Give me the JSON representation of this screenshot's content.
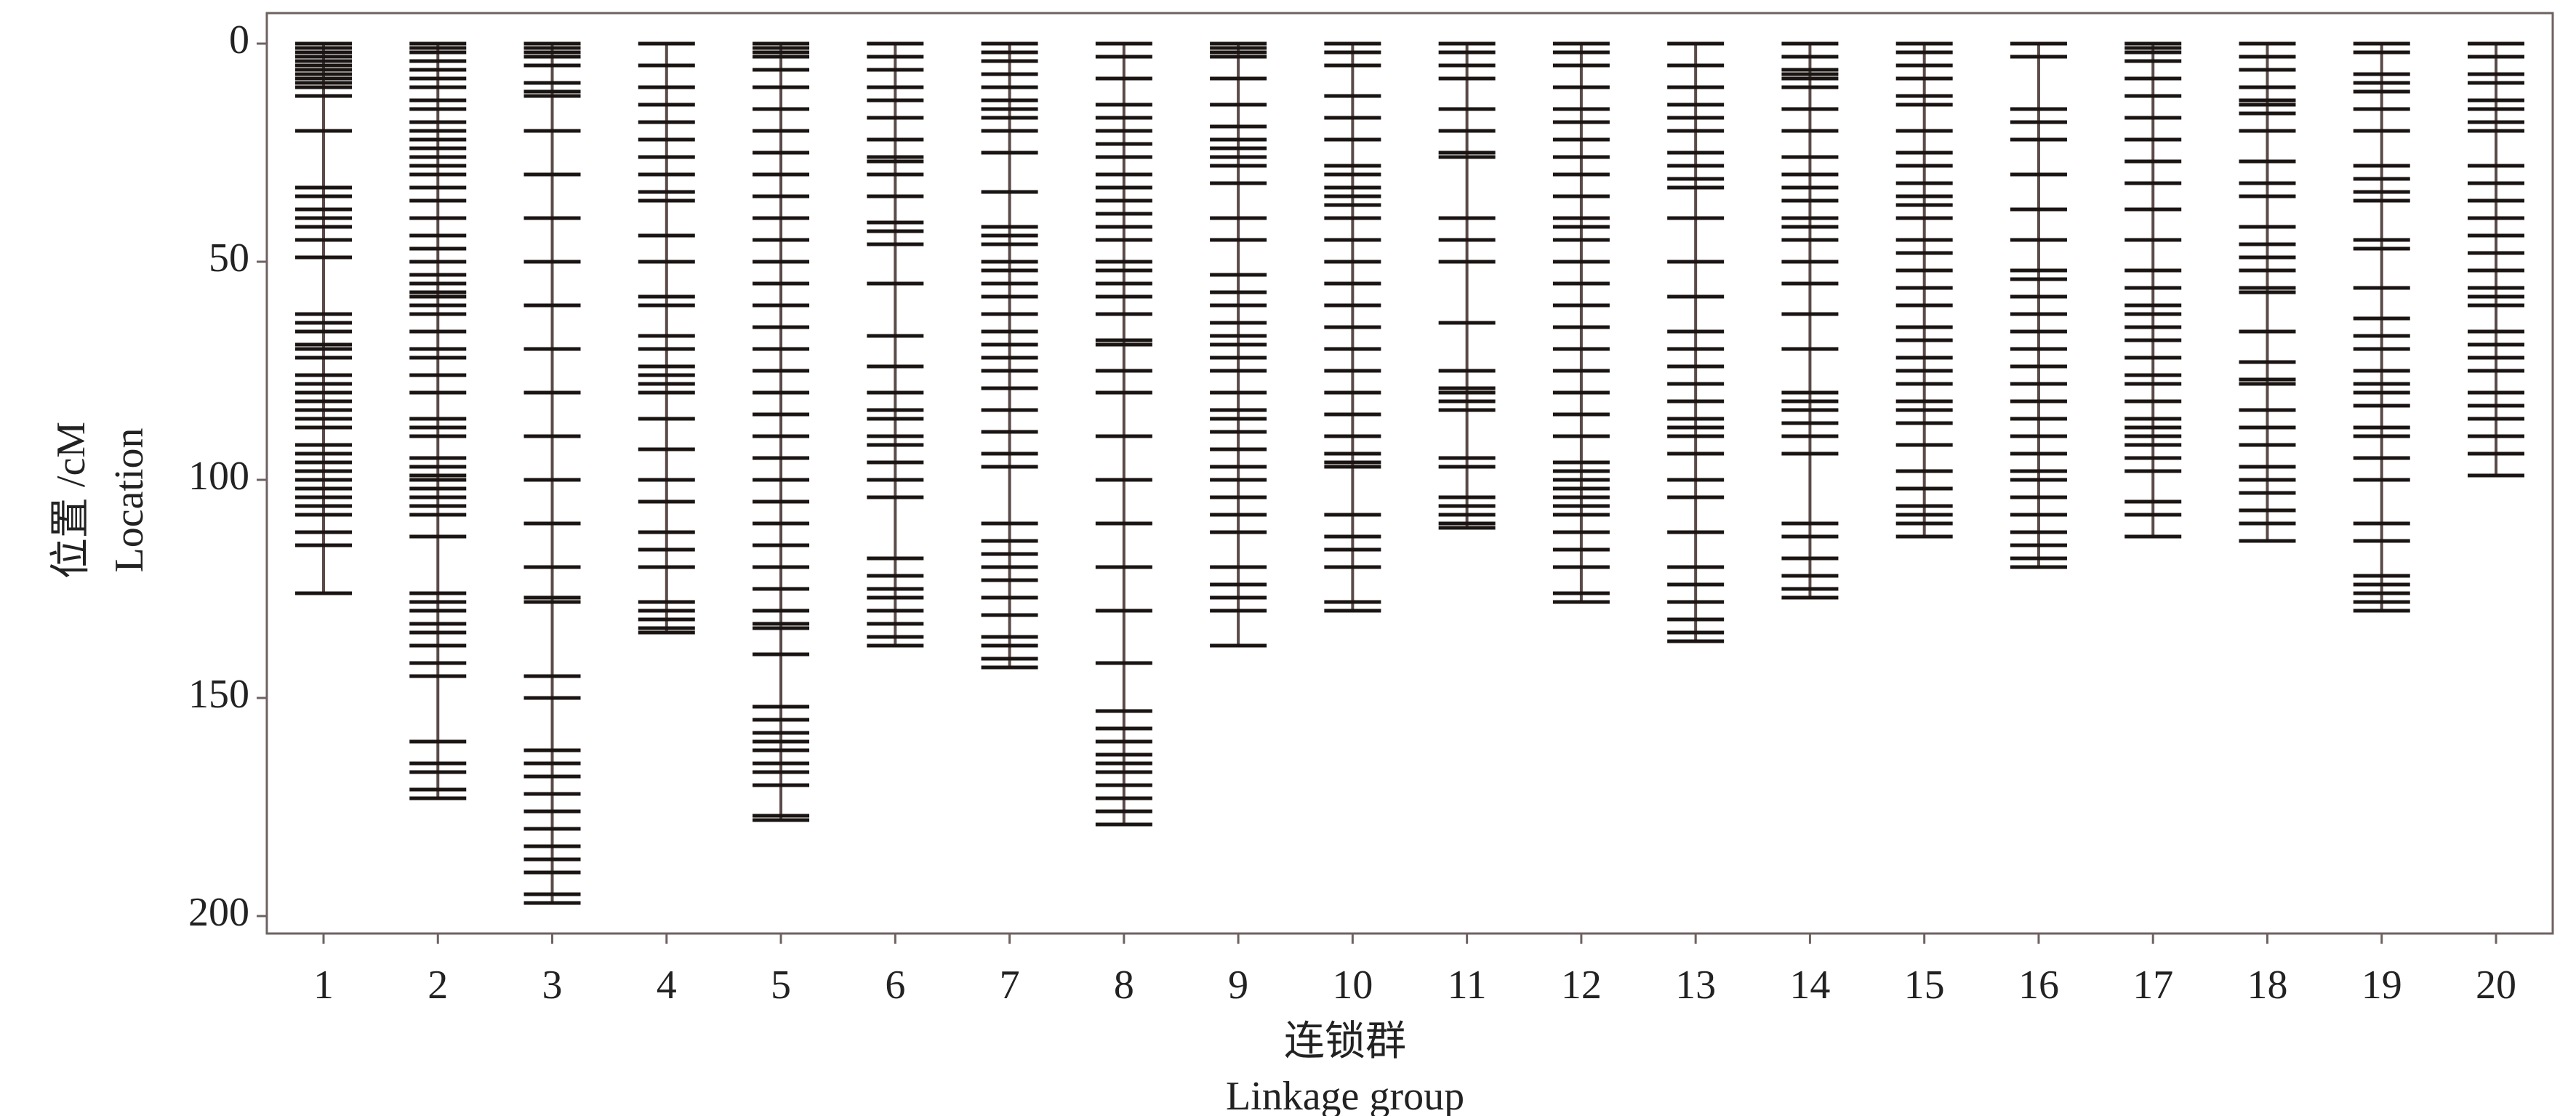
{
  "chart_data": {
    "type": "linkage-map",
    "x_label": "连锁群",
    "x_label_en": "Linkage group",
    "y_label": "位置 /cM",
    "y_label_en": "Location",
    "categories": [
      "1",
      "2",
      "3",
      "4",
      "5",
      "6",
      "7",
      "8",
      "9",
      "10",
      "11",
      "12",
      "13",
      "14",
      "15",
      "16",
      "17",
      "18",
      "19",
      "20"
    ],
    "lengths": [
      126,
      173,
      197,
      135,
      178,
      138,
      143,
      179,
      138,
      130,
      111,
      128,
      137,
      127,
      113,
      120,
      113,
      114,
      130,
      99
    ],
    "markers": [
      [
        0,
        1,
        2,
        3,
        4,
        5,
        6,
        7,
        8,
        9,
        10,
        12,
        20,
        33,
        35,
        38,
        40,
        42,
        45,
        49,
        62,
        64,
        66,
        69,
        70,
        72,
        76,
        78,
        80,
        82,
        84,
        86,
        88,
        92,
        94,
        96,
        98,
        100,
        102,
        104,
        106,
        108,
        112,
        115,
        126
      ],
      [
        0,
        1,
        2,
        4,
        6,
        8,
        10,
        13,
        15,
        18,
        20,
        22,
        24,
        26,
        28,
        30,
        33,
        36,
        40,
        44,
        47,
        50,
        53,
        55,
        57,
        58,
        60,
        62,
        66,
        70,
        72,
        76,
        80,
        86,
        88,
        90,
        95,
        97,
        99,
        100,
        102,
        104,
        106,
        108,
        113,
        126,
        128,
        130,
        133,
        135,
        138,
        142,
        145,
        160,
        165,
        167,
        171,
        173
      ],
      [
        0,
        1,
        2,
        3,
        5,
        9,
        11,
        12,
        20,
        30,
        40,
        50,
        60,
        70,
        80,
        90,
        100,
        110,
        120,
        127,
        128,
        145,
        150,
        162,
        165,
        168,
        172,
        176,
        180,
        184,
        187,
        190,
        195,
        197
      ],
      [
        0,
        5,
        10,
        14,
        18,
        22,
        26,
        30,
        34,
        36,
        44,
        50,
        58,
        60,
        67,
        70,
        74,
        76,
        78,
        80,
        86,
        93,
        100,
        105,
        112,
        116,
        120,
        128,
        130,
        132,
        134,
        135
      ],
      [
        0,
        1,
        2,
        3,
        6,
        10,
        15,
        20,
        25,
        30,
        35,
        40,
        45,
        50,
        55,
        60,
        65,
        70,
        75,
        80,
        85,
        90,
        95,
        100,
        105,
        110,
        115,
        120,
        125,
        130,
        133,
        134,
        140,
        152,
        155,
        158,
        160,
        162,
        165,
        167,
        170,
        177,
        178
      ],
      [
        0,
        3,
        6,
        10,
        13,
        17,
        22,
        26,
        27,
        30,
        35,
        41,
        43,
        46,
        55,
        67,
        74,
        80,
        84,
        86,
        90,
        92,
        96,
        100,
        104,
        118,
        122,
        125,
        127,
        130,
        133,
        136,
        138
      ],
      [
        0,
        2,
        4,
        7,
        10,
        13,
        15,
        17,
        20,
        25,
        34,
        42,
        44,
        46,
        50,
        52,
        55,
        58,
        62,
        66,
        69,
        72,
        75,
        79,
        84,
        89,
        94,
        97,
        110,
        114,
        117,
        120,
        123,
        127,
        131,
        136,
        138,
        141,
        143
      ],
      [
        0,
        3,
        8,
        14,
        17,
        20,
        23,
        26,
        30,
        33,
        36,
        39,
        42,
        45,
        50,
        52,
        55,
        58,
        62,
        68,
        69,
        75,
        80,
        90,
        100,
        110,
        120,
        130,
        142,
        153,
        157,
        160,
        163,
        165,
        167,
        170,
        173,
        176,
        179
      ],
      [
        0,
        1,
        2,
        3,
        8,
        14,
        19,
        22,
        24,
        26,
        28,
        32,
        40,
        45,
        53,
        57,
        60,
        64,
        67,
        69,
        72,
        75,
        80,
        84,
        86,
        89,
        93,
        97,
        100,
        104,
        108,
        112,
        120,
        124,
        127,
        130,
        138
      ],
      [
        0,
        2,
        5,
        12,
        17,
        22,
        28,
        30,
        33,
        35,
        37,
        40,
        45,
        50,
        55,
        60,
        65,
        70,
        75,
        80,
        85,
        90,
        94,
        96,
        97,
        108,
        113,
        116,
        120,
        128,
        130
      ],
      [
        0,
        2,
        5,
        8,
        15,
        20,
        25,
        26,
        40,
        45,
        50,
        64,
        75,
        79,
        80,
        82,
        84,
        95,
        97,
        104,
        106,
        108,
        110,
        111
      ],
      [
        0,
        2,
        5,
        10,
        15,
        18,
        22,
        26,
        30,
        35,
        40,
        42,
        45,
        50,
        55,
        60,
        65,
        70,
        75,
        80,
        85,
        90,
        96,
        98,
        100,
        102,
        104,
        106,
        108,
        112,
        116,
        120,
        126,
        128
      ],
      [
        0,
        5,
        10,
        14,
        17,
        20,
        25,
        28,
        31,
        33,
        40,
        50,
        58,
        66,
        70,
        74,
        78,
        82,
        86,
        88,
        90,
        94,
        100,
        104,
        112,
        120,
        124,
        128,
        132,
        135,
        137
      ],
      [
        0,
        3,
        6,
        7,
        8,
        10,
        15,
        20,
        26,
        30,
        33,
        36,
        40,
        42,
        45,
        50,
        55,
        62,
        70,
        80,
        82,
        84,
        87,
        90,
        94,
        110,
        113,
        118,
        122,
        125,
        127
      ],
      [
        0,
        2,
        5,
        8,
        12,
        14,
        20,
        25,
        28,
        32,
        35,
        37,
        40,
        45,
        48,
        52,
        56,
        60,
        65,
        68,
        72,
        75,
        78,
        82,
        84,
        87,
        92,
        98,
        102,
        106,
        108,
        110,
        113
      ],
      [
        0,
        3,
        15,
        18,
        22,
        30,
        38,
        45,
        52,
        54,
        58,
        62,
        66,
        70,
        74,
        78,
        82,
        86,
        90,
        94,
        98,
        100,
        104,
        108,
        112,
        115,
        118,
        120
      ],
      [
        0,
        1,
        2,
        4,
        8,
        12,
        17,
        22,
        27,
        32,
        38,
        45,
        52,
        56,
        60,
        62,
        65,
        68,
        72,
        76,
        78,
        82,
        86,
        88,
        90,
        92,
        95,
        98,
        105,
        108,
        113
      ],
      [
        0,
        3,
        6,
        10,
        13,
        14,
        16,
        20,
        27,
        32,
        35,
        42,
        46,
        49,
        52,
        56,
        57,
        66,
        73,
        77,
        78,
        84,
        88,
        92,
        97,
        100,
        103,
        107,
        110,
        114
      ],
      [
        0,
        2,
        7,
        9,
        11,
        15,
        20,
        28,
        31,
        34,
        36,
        45,
        47,
        56,
        63,
        67,
        70,
        75,
        78,
        80,
        83,
        88,
        90,
        95,
        100,
        110,
        114,
        122,
        124,
        126,
        128,
        130
      ],
      [
        0,
        3,
        7,
        9,
        13,
        15,
        18,
        20,
        28,
        32,
        36,
        40,
        44,
        48,
        52,
        56,
        58,
        60,
        66,
        69,
        72,
        75,
        80,
        83,
        86,
        90,
        94,
        99
      ]
    ],
    "marker_color": "#1a1413",
    "backbone_color": "#5a4a48",
    "frame_color": "#6e6260",
    "ylim": [
      -7,
      204
    ],
    "y_inverted": true,
    "yticks": [
      0,
      50,
      100,
      150,
      200
    ]
  }
}
